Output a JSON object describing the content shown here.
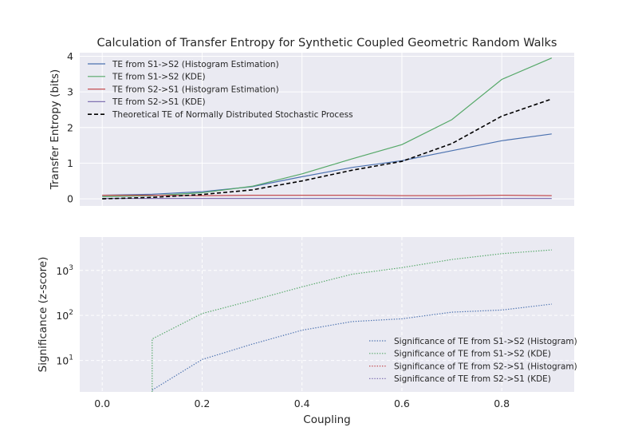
{
  "chart_data": [
    {
      "type": "line",
      "title": "Calculation of Transfer Entropy for Synthetic Coupled Geometric Random Walks",
      "xlabel": "",
      "ylabel": "Transfer Entropy (bits)",
      "xlim": [
        -0.045,
        0.945
      ],
      "ylim": [
        -0.2,
        4.1
      ],
      "yticks": [
        0,
        1,
        2,
        3,
        4
      ],
      "grid": true,
      "legend_position": "top-left",
      "x": [
        0.0,
        0.1,
        0.2,
        0.3,
        0.4,
        0.5,
        0.6,
        0.7,
        0.8,
        0.9
      ],
      "series": [
        {
          "name": "TE from S1->S2 (Histogram Estimation)",
          "color": "#4c72b0",
          "dash": "solid",
          "values": [
            0.1,
            0.13,
            0.2,
            0.34,
            0.62,
            0.88,
            1.07,
            1.35,
            1.63,
            1.82
          ]
        },
        {
          "name": "TE from S1->S2 (KDE)",
          "color": "#55a868",
          "dash": "solid",
          "values": [
            0.06,
            0.09,
            0.17,
            0.35,
            0.7,
            1.12,
            1.52,
            2.22,
            3.35,
            3.95
          ]
        },
        {
          "name": "TE from S2->S1 (Histogram Estimation)",
          "color": "#c44e52",
          "dash": "solid",
          "values": [
            0.1,
            0.1,
            0.09,
            0.1,
            0.1,
            0.1,
            0.09,
            0.09,
            0.1,
            0.09
          ]
        },
        {
          "name": "TE from S2->S1 (KDE)",
          "color": "#8172b2",
          "dash": "solid",
          "values": [
            0.01,
            0.01,
            0.01,
            0.01,
            0.01,
            0.01,
            0.01,
            0.01,
            0.01,
            0.01
          ]
        },
        {
          "name": "Theoretical TE of Normally Distributed Stochastic Process",
          "color": "#000000",
          "dash": "dashed",
          "values": [
            0.0,
            0.04,
            0.12,
            0.25,
            0.5,
            0.8,
            1.05,
            1.55,
            2.32,
            2.8
          ]
        }
      ]
    },
    {
      "type": "line",
      "title": "",
      "xlabel": "Coupling",
      "ylabel": "Significance (z-score)",
      "xlim": [
        -0.045,
        0.945
      ],
      "ylim": [
        2,
        5500
      ],
      "yscale": "log",
      "yticks": [
        {
          "base": "10",
          "exp": "1",
          "value": 10
        },
        {
          "base": "10",
          "exp": "2",
          "value": 100
        },
        {
          "base": "10",
          "exp": "3",
          "value": 1000
        }
      ],
      "xticks": [
        "0.0",
        "0.2",
        "0.4",
        "0.6",
        "0.8"
      ],
      "xtick_values": [
        0.0,
        0.2,
        0.4,
        0.6,
        0.8
      ],
      "grid": true,
      "grid_style": "dashed",
      "legend_position": "lower-right",
      "series": [
        {
          "name": "Significance of TE from S1->S2 (Histogram)",
          "color": "#4c72b0",
          "dash": "dotted",
          "x": [
            0.1,
            0.2,
            0.3,
            0.4,
            0.5,
            0.6,
            0.7,
            0.8,
            0.9
          ],
          "values": [
            2.2,
            10.5,
            23,
            47,
            73,
            84,
            118,
            132,
            178
          ]
        },
        {
          "name": "Significance of TE from S1->S2 (KDE)",
          "color": "#55a868",
          "dash": "dotted",
          "x": [
            0.1,
            0.1,
            0.2,
            0.3,
            0.4,
            0.5,
            0.6,
            0.7,
            0.8,
            0.9
          ],
          "values": [
            2.0,
            30,
            110,
            215,
            430,
            820,
            1150,
            1750,
            2350,
            2850
          ]
        },
        {
          "name": "Significance of TE from S2->S1 (Histogram)",
          "color": "#c44e52",
          "dash": "dotted",
          "x": [],
          "values": []
        },
        {
          "name": "Significance of TE from S2->S1 (KDE)",
          "color": "#8172b2",
          "dash": "dotted",
          "x": [],
          "values": []
        }
      ]
    }
  ]
}
